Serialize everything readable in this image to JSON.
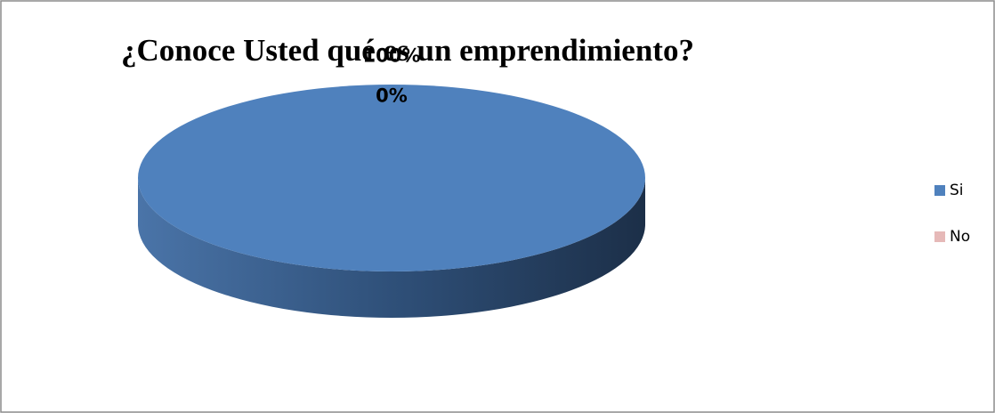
{
  "chart_data": {
    "type": "pie",
    "title": "¿Conoce Usted qué es un emprendimiento?",
    "categories": [
      "Si",
      "No"
    ],
    "values": [
      100,
      0
    ],
    "value_labels": [
      "100%",
      "0%"
    ],
    "colors": [
      "#4f81bd",
      "#e6b9b8"
    ],
    "legend": "right"
  }
}
